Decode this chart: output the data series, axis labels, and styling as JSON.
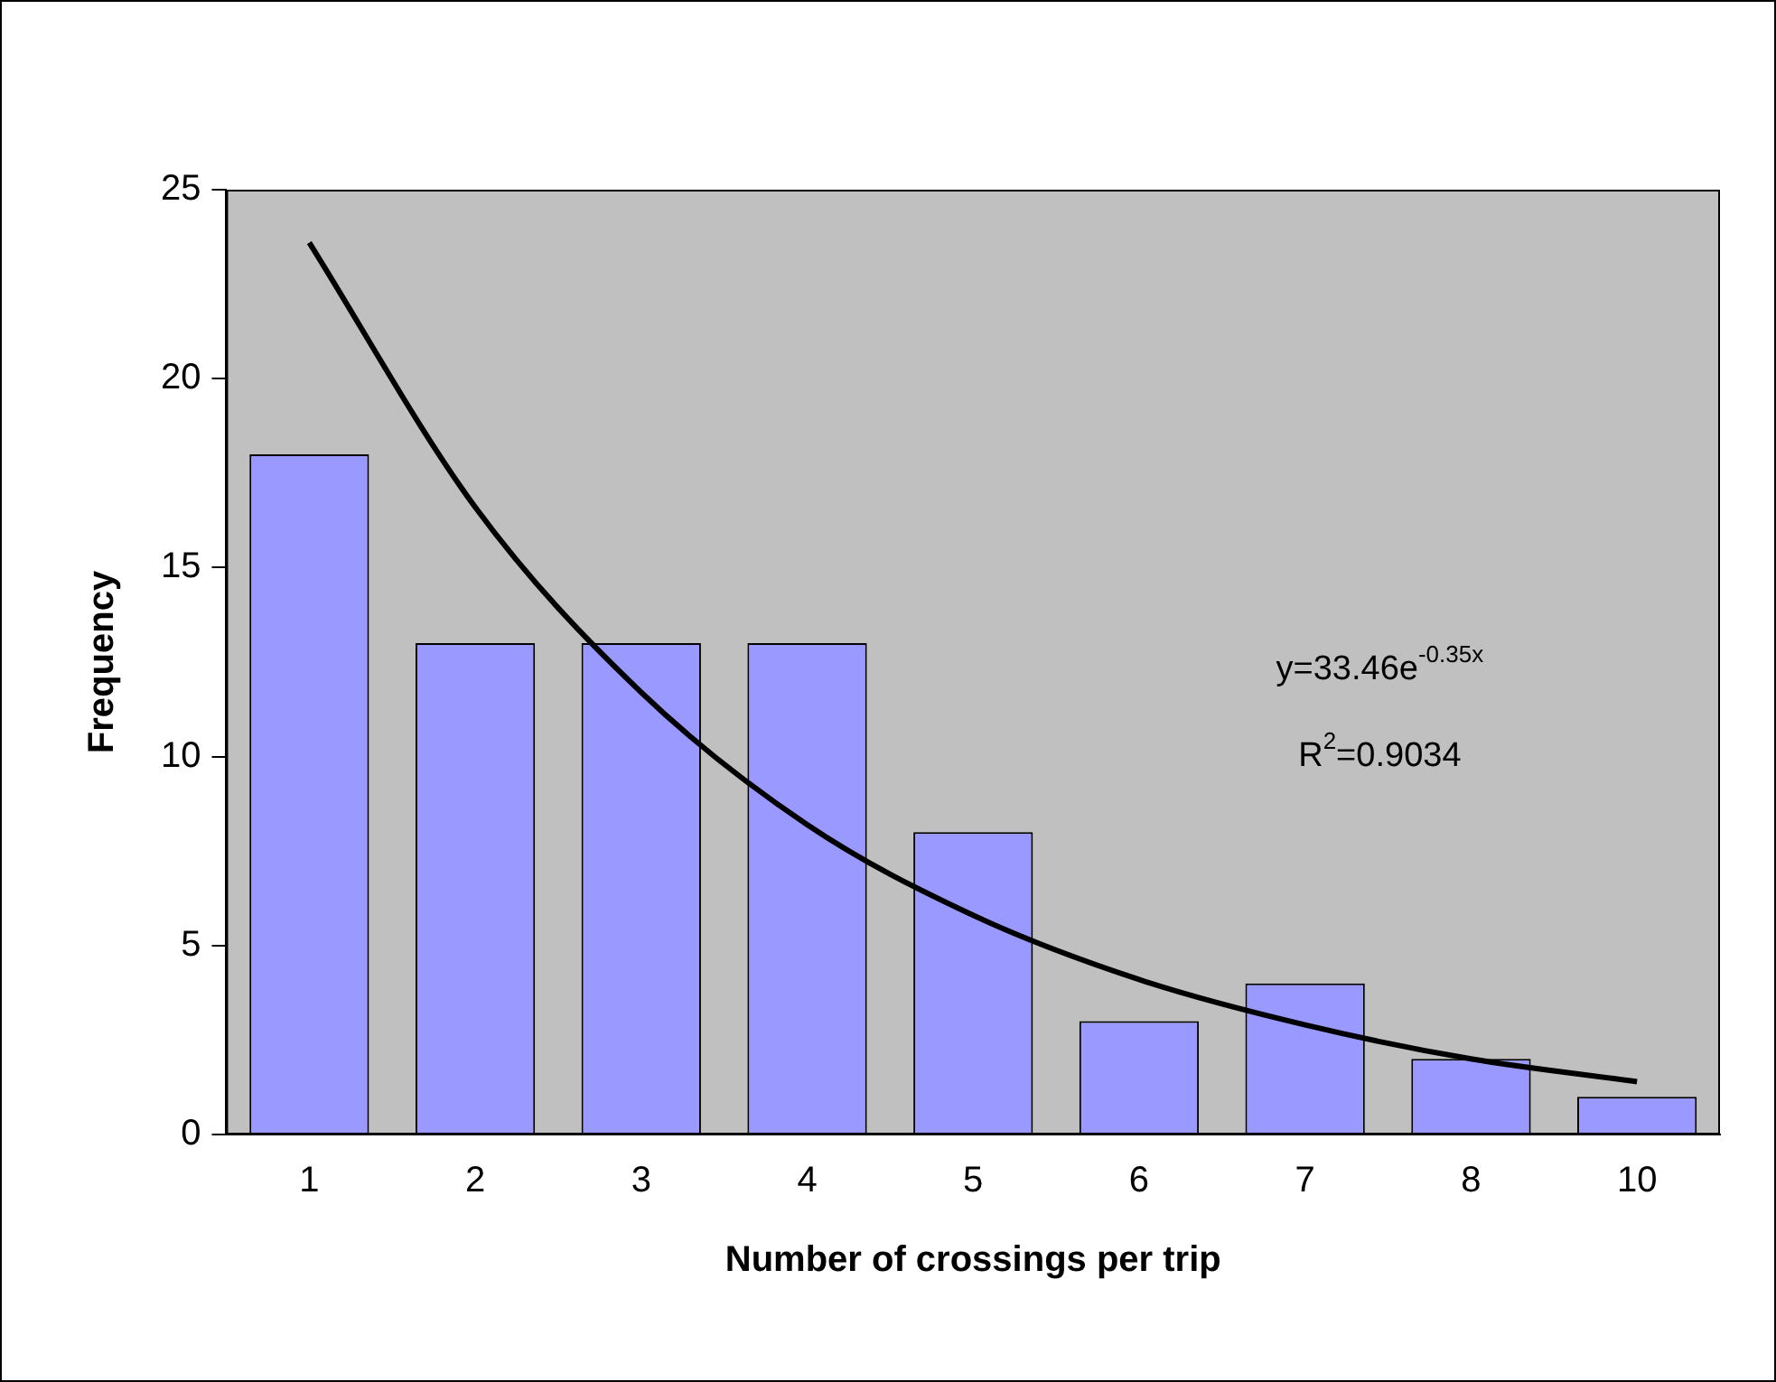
{
  "chart_data": {
    "type": "bar",
    "xlabel": "Number of crossings per trip",
    "ylabel": "Frequency",
    "categories": [
      "1",
      "2",
      "3",
      "4",
      "5",
      "6",
      "7",
      "8",
      "10"
    ],
    "series": [
      {
        "color": "#9999ff",
        "values": [
          18,
          13,
          13,
          13,
          8,
          3,
          4,
          2,
          1
        ]
      },
      {
        "type": "line",
        "color": "#000000",
        "values": [
          23.6,
          16.6,
          11.7,
          8.2,
          5.8,
          4.1,
          2.9,
          2.0,
          1.4
        ]
      }
    ],
    "ylim": [
      0,
      25
    ],
    "yticks": [
      0,
      5,
      10,
      15,
      20,
      25
    ],
    "grid": false,
    "legend": false,
    "marker": "none",
    "line_style": "solid",
    "annotations": [
      "y=33.46e$^{-0.35x}$",
      "R$^{2}$=0.9034"
    ]
  }
}
